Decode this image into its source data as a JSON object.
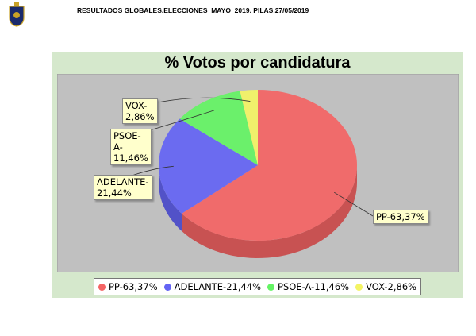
{
  "header": {
    "title": "RESULTADOS GLOBALES.ELECCIONES  MAYO  2019. PILAS.27/05/2019"
  },
  "chart_data": {
    "type": "pie",
    "title": "% Votos por candidatura",
    "categories": [
      "PP-63,37%",
      "ADELANTE-21,44%",
      "PSOE-A-11,46%",
      "VOX-2,86%"
    ],
    "values": [
      63.37,
      21.44,
      11.46,
      2.86
    ],
    "colors": [
      "#f46464",
      "#6464f4",
      "#64f464",
      "#f4f464"
    ]
  }
}
